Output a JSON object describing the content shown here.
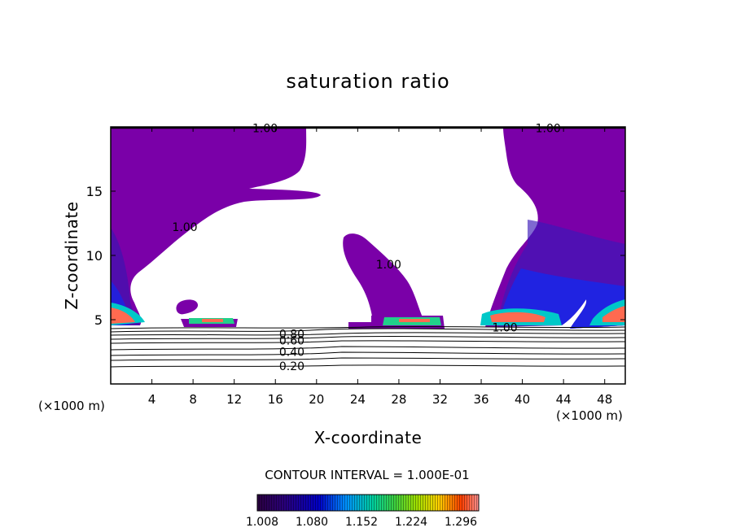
{
  "chart_data": {
    "type": "heatmap",
    "title": "saturation ratio",
    "xlabel": "X-coordinate",
    "ylabel": "Z-coordinate",
    "x_unit": "(×1000 m)",
    "xlim": [
      0,
      50
    ],
    "ylim": [
      0,
      20
    ],
    "x_ticks": [
      4,
      8,
      12,
      16,
      20,
      24,
      28,
      32,
      36,
      40,
      44,
      48
    ],
    "y_ticks": [
      5,
      10,
      15
    ],
    "contour_interval_label": "CONTOUR INTERVAL = 1.000E-01",
    "colorbar_ticks": [
      "1.008",
      "1.080",
      "1.152",
      "1.224",
      "1.296"
    ],
    "contour_labels": [
      {
        "text": "1.00",
        "x": 15.0,
        "z": 19.9
      },
      {
        "text": "1.00",
        "x": 42.5,
        "z": 19.9
      },
      {
        "text": "1.00",
        "x": 7.2,
        "z": 12.2
      },
      {
        "text": "1.00",
        "x": 27.0,
        "z": 9.3
      },
      {
        "text": "1.00",
        "x": 38.3,
        "z": 4.4
      },
      {
        "text": "0.80",
        "x": 17.6,
        "z": 3.9
      },
      {
        "text": "0.60",
        "x": 17.6,
        "z": 3.4
      },
      {
        "text": "0.40",
        "x": 17.6,
        "z": 2.5
      },
      {
        "text": "0.20",
        "x": 17.6,
        "z": 1.4
      }
    ]
  }
}
